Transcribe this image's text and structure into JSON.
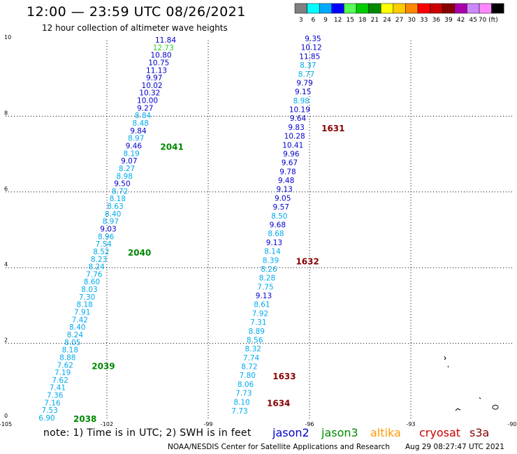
{
  "header": {
    "title": "12:00 — 23:59 UTC 08/26/2021",
    "subtitle": "12 hour collection of altimeter wave heights"
  },
  "legend": {
    "swatches": [
      {
        "color": "#808080",
        "label": "3"
      },
      {
        "color": "#00ffff",
        "label": "6"
      },
      {
        "color": "#00aaff",
        "label": "9"
      },
      {
        "color": "#0000ff",
        "label": "12"
      },
      {
        "color": "#55ff55",
        "label": "15"
      },
      {
        "color": "#00cc00",
        "label": "18"
      },
      {
        "color": "#008800",
        "label": "21"
      },
      {
        "color": "#ffff00",
        "label": "24"
      },
      {
        "color": "#ffcc00",
        "label": "27"
      },
      {
        "color": "#ff8800",
        "label": "30"
      },
      {
        "color": "#ff0000",
        "label": "33"
      },
      {
        "color": "#cc0000",
        "label": "36"
      },
      {
        "color": "#880000",
        "label": "39"
      },
      {
        "color": "#aa00aa",
        "label": "42"
      },
      {
        "color": "#cc88ff",
        "label": "45"
      },
      {
        "color": "#ff88ff",
        "label": "70 (ft)"
      },
      {
        "color": "#000000",
        "label": ""
      }
    ]
  },
  "axes": {
    "lon_ticks": [
      "-105",
      "-102",
      "-99",
      "-96",
      "-93",
      "-90"
    ],
    "lat_ticks": [
      "0",
      "2",
      "4",
      "6",
      "8",
      "10"
    ]
  },
  "track_left": {
    "values": [
      "6.90",
      "7.53",
      "7.16",
      "7.36",
      "7.41",
      "7.62",
      "7.19",
      "7.62",
      "8.88",
      "8.18",
      "8.05",
      "8.24",
      "8.40",
      "7.42",
      "7.91",
      "8.18",
      "7.30",
      "8.03",
      "8.60",
      "7.76",
      "8.24",
      "8.23",
      "8.52",
      "7.54",
      "8.96",
      "9.03",
      "8.97",
      "8.40",
      "8.63",
      "8.18",
      "8.72",
      "9.50",
      "8.98",
      "8.27",
      "9.07",
      "8.19",
      "9.46",
      "8.97",
      "9.84",
      "8.48",
      "8.84",
      "9.27",
      "10.00",
      "10.32",
      "10.02",
      "9.97",
      "11.13",
      "10.75",
      "10.80",
      "12.73",
      "11.84"
    ],
    "colors": [
      "c",
      "c",
      "c",
      "c",
      "c",
      "c",
      "c",
      "c",
      "c",
      "c",
      "c",
      "c",
      "c",
      "c",
      "c",
      "c",
      "c",
      "c",
      "c",
      "c",
      "c",
      "c",
      "c",
      "c",
      "c",
      "b",
      "c",
      "c",
      "c",
      "c",
      "c",
      "b",
      "c",
      "c",
      "b",
      "c",
      "b",
      "c",
      "b",
      "c",
      "c",
      "b",
      "b",
      "b",
      "b",
      "b",
      "b",
      "b",
      "b",
      "g",
      "b"
    ],
    "time_labels": [
      {
        "text": "2038",
        "idx": 0
      },
      {
        "text": "2039",
        "idx": 7
      },
      {
        "text": "2040",
        "idx": 22
      },
      {
        "text": "2041",
        "idx": 36
      }
    ]
  },
  "track_right": {
    "values": [
      "7.73",
      "8.10",
      "7.73",
      "8.06",
      "7.80",
      "8.72",
      "7.74",
      "8.32",
      "8.56",
      "8.89",
      "7.31",
      "7.92",
      "8.61",
      "9.13",
      "7.75",
      "8.28",
      "8.26",
      "8.39",
      "8.14",
      "9.13",
      "8.68",
      "9.68",
      "8.50",
      "9.57",
      "9.05",
      "9.13",
      "9.48",
      "9.78",
      "9.67",
      "9.96",
      "10.41",
      "10.28",
      "9.83",
      "9.64",
      "10.19",
      "8.98",
      "9.15",
      "9.79",
      "8.77",
      "8.37",
      "11.85",
      "10.12",
      "9.35"
    ],
    "colors": [
      "c",
      "c",
      "c",
      "c",
      "c",
      "c",
      "c",
      "c",
      "c",
      "c",
      "c",
      "c",
      "c",
      "b",
      "c",
      "c",
      "c",
      "c",
      "c",
      "b",
      "c",
      "b",
      "c",
      "b",
      "b",
      "b",
      "b",
      "b",
      "b",
      "b",
      "b",
      "b",
      "b",
      "b",
      "b",
      "c",
      "b",
      "b",
      "c",
      "c",
      "b",
      "b",
      "b"
    ],
    "time_labels": [
      {
        "text": "1634",
        "idx": 1
      },
      {
        "text": "1633",
        "idx": 4
      },
      {
        "text": "1632",
        "idx": 17
      },
      {
        "text": "1631",
        "idx": 32
      }
    ]
  },
  "note": "note:  1) Time is in UTC;  2) SWH is in feet",
  "satellites": [
    {
      "name": "jason2",
      "color": "#0000cc"
    },
    {
      "name": "jason3",
      "color": "#008800"
    },
    {
      "name": "altika",
      "color": "#ff9900"
    },
    {
      "name": "cryosat",
      "color": "#cc0000"
    },
    {
      "name": "s3a",
      "color": "#880000"
    }
  ],
  "footer": {
    "left": "NOAA/NESDIS Center for Satellite Applications and Research",
    "right": "Aug 29 08:27:47 UTC 2021"
  }
}
